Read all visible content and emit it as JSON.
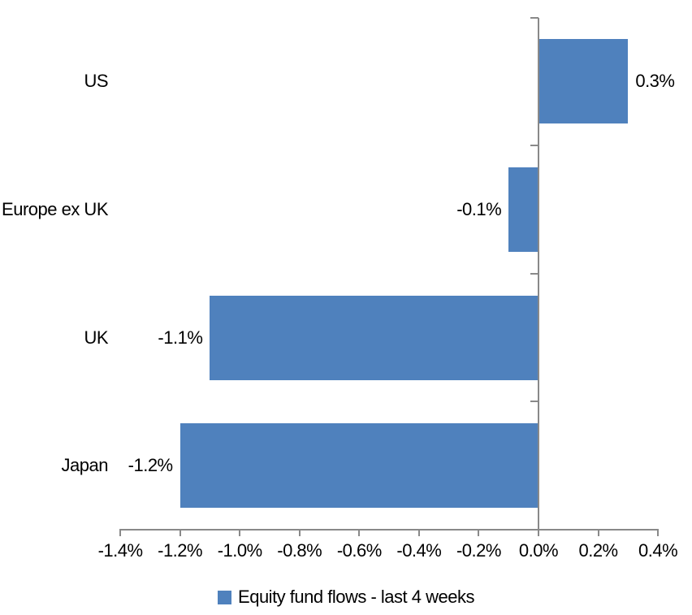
{
  "chart_data": {
    "type": "bar",
    "orientation": "horizontal",
    "title": "",
    "categories": [
      "US",
      "Europe ex UK",
      "UK",
      "Japan"
    ],
    "values": [
      0.3,
      -0.1,
      -1.1,
      -1.2
    ],
    "value_labels": [
      "0.3%",
      "-0.1%",
      "-1.1%",
      "-1.2%"
    ],
    "series": [
      {
        "name": "Equity fund flows - last 4 weeks",
        "values": [
          0.3,
          -0.1,
          -1.1,
          -1.2
        ]
      }
    ],
    "xlabel": "",
    "ylabel": "",
    "xlim": [
      -1.4,
      0.4
    ],
    "x_tick_step": 0.2,
    "x_tick_labels": [
      "-1.4%",
      "-1.2%",
      "-1.0%",
      "-0.8%",
      "-0.6%",
      "-0.4%",
      "-0.2%",
      "0.0%",
      "0.2%",
      "0.4%"
    ],
    "grid": false,
    "legend_position": "bottom",
    "colors": {
      "bar": "#4f81bd",
      "axis": "#898989",
      "text": "#000000",
      "background": "#ffffff"
    }
  },
  "legend": {
    "label": "Equity fund flows - last 4 weeks"
  }
}
